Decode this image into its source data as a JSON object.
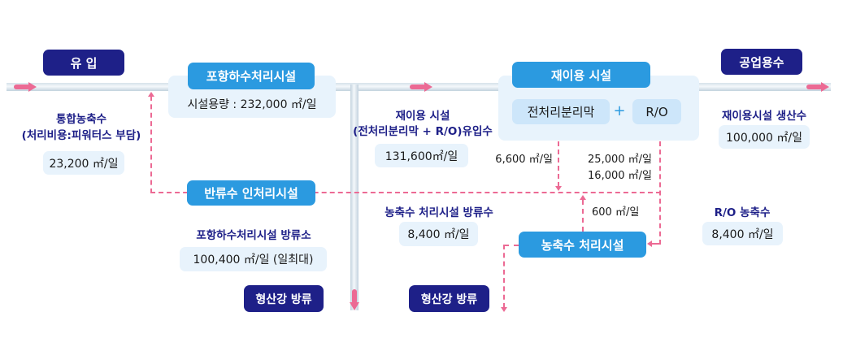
{
  "colors": {
    "navy": "#1e2088",
    "blue": "#2b9ae0",
    "panel": "#e8f3fc",
    "flow": "#ec6a94"
  },
  "inflow": {
    "title": "유 입",
    "label_line1": "통합농축수",
    "label_line2": "(처리비용:피워터스 부담)",
    "value": "23,200 ㎡/일"
  },
  "sewage_plant": {
    "title": "포항하수처리시설",
    "capacity": "시설용량 : 232,000 ㎡/일"
  },
  "return_plant": {
    "title": "반류수 인처리시설"
  },
  "sewage_discharge": {
    "label": "포항하수처리시설 방류소",
    "value": "100,400 ㎡/일 (일최대)",
    "destination": "형산강 방류"
  },
  "reuse_inflow": {
    "label_line1": "재이용 시설",
    "label_line2": "(전처리분리막 + R/O)유입수",
    "value": "131,600㎡/일"
  },
  "reuse_plant": {
    "title": "재이용 시설",
    "pretreatment": "전처리분리막",
    "plus": "+",
    "ro": "R/O",
    "flow_left": "6,600 ㎡/일",
    "flow_right_1": "25,000 ㎡/일",
    "flow_right_2": "16,000 ㎡/일"
  },
  "concentrate_plant": {
    "title": "농축수 처리시설",
    "return_flow": "600 ㎡/일",
    "discharge_label": "농축수 처리시설 방류수",
    "discharge_value": "8,400 ㎡/일",
    "destination": "형산강 방류"
  },
  "industrial": {
    "title": "공업용수",
    "label": "재이용시설 생산수",
    "value": "100,000 ㎡/일"
  },
  "ro_concentrate": {
    "label": "R/O 농축수",
    "value": "8,400 ㎡/일"
  }
}
